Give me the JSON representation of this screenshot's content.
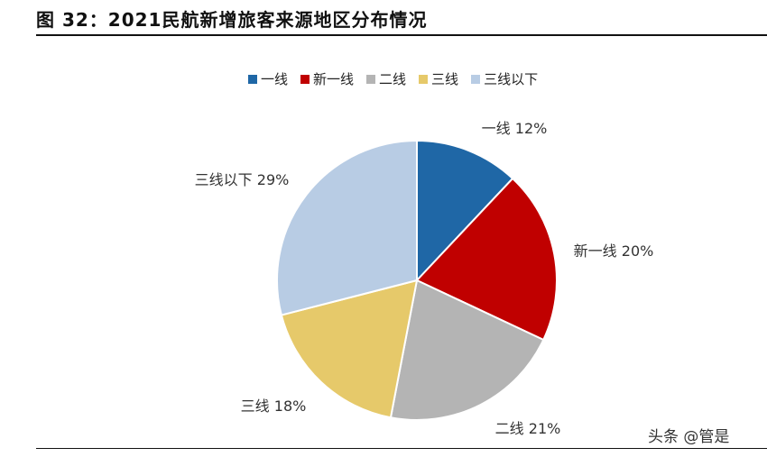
{
  "header": {
    "title": "图 32：2021民航新增旅客来源地区分布情况"
  },
  "watermark": "头条 @管是",
  "chart_data": {
    "type": "pie",
    "title": "",
    "legend_position": "top",
    "slices": [
      {
        "name": "一线",
        "value": 12,
        "label": "一线 12%",
        "color": "#1f67a6"
      },
      {
        "name": "新一线",
        "value": 20,
        "label": "新一线 20%",
        "color": "#c00000"
      },
      {
        "name": "二线",
        "value": 21,
        "label": "二线 21%",
        "color": "#b4b4b4"
      },
      {
        "name": "三线",
        "value": 18,
        "label": "三线 18%",
        "color": "#e6c96a"
      },
      {
        "name": "三线以下",
        "value": 29,
        "label": "三线以下 29%",
        "color": "#b8cce4"
      }
    ]
  }
}
